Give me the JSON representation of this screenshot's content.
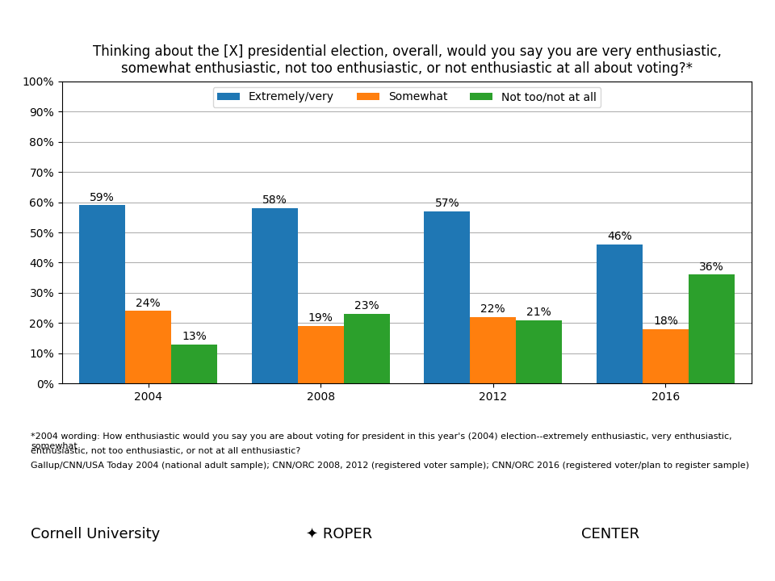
{
  "chart_data": {
    "type": "bar",
    "title": "Thinking about the [X] presidential election, overall, would you say you are very enthusiastic,\nsomewhat enthusiastic, not too enthusiastic, or not enthusiastic at all about voting?*",
    "categories": [
      "2004",
      "2008",
      "2012",
      "2016"
    ],
    "series": [
      {
        "name": "Extremely/very",
        "values": [
          59,
          58,
          57,
          46
        ],
        "value_labels": [
          "59%",
          "58%",
          "57%",
          "46%"
        ]
      },
      {
        "name": "Somewhat",
        "values": [
          24,
          19,
          22,
          18
        ],
        "value_labels": [
          "24%",
          "19%",
          "22%",
          "18%"
        ]
      },
      {
        "name": "Not too/not at all",
        "values": [
          13,
          23,
          21,
          36
        ],
        "value_labels": [
          "13%",
          "23%",
          "21%",
          "36%"
        ]
      }
    ],
    "ylim": [
      0,
      100
    ],
    "yticks": [
      {
        "value": 0,
        "label": "0%"
      },
      {
        "value": 10,
        "label": "10%"
      },
      {
        "value": 20,
        "label": "20%"
      },
      {
        "value": 30,
        "label": "30%"
      },
      {
        "value": 40,
        "label": "40%"
      },
      {
        "value": 50,
        "label": "50%"
      },
      {
        "value": 60,
        "label": "60%"
      },
      {
        "value": 70,
        "label": "70%"
      },
      {
        "value": 80,
        "label": "80%"
      },
      {
        "value": 90,
        "label": "90%"
      },
      {
        "value": 100,
        "label": "100%"
      }
    ],
    "grid": true,
    "legend": "upper center",
    "data_labels": true,
    "annotations": [
      "*2004 wording: How enthusiastic would you say you are about voting for president in this year's (2004) election--extremely enthusiastic, very enthusiastic, somewhat",
      "enthusiastic, not too enthusiastic, or not at all enthusiastic?",
      "Gallup/CNN/USA Today 2004 (national adult sample); CNN/ORC 2008, 2012 (registered voter sample); CNN/ORC 2016 (registered voter/plan to register sample)",
      "Cornell University",
      "✦ ROPER",
      "CENTER"
    ]
  }
}
